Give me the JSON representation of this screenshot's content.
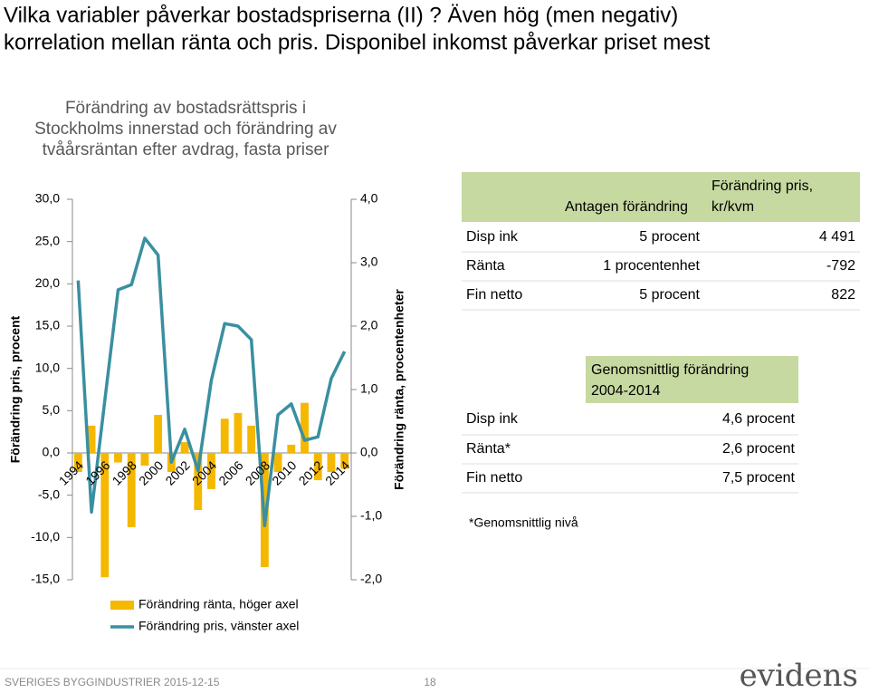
{
  "slide_title": [
    "Vilka variabler påverkar bostadspriserna (II) ? Även hög (men negativ)",
    "korrelation mellan ränta och pris. Disponibel inkomst påverkar priset mest"
  ],
  "chart_data": {
    "type": "bar_line",
    "title": [
      "Förändring av bostadsrättspris i",
      "Stockholms innerstad och förändring av",
      "tvåårsräntan efter avdrag, fasta priser"
    ],
    "y_label": "Förändring pris, procent",
    "y2_label": "Förändring ränta, procentenheter",
    "categories": [
      "1994",
      null,
      "1996",
      null,
      "1998",
      null,
      "2000",
      null,
      "2002",
      null,
      "2004",
      null,
      "2006",
      null,
      "2008",
      null,
      "2010",
      null,
      "2012",
      null,
      "2014"
    ],
    "series": [
      {
        "name": "Förändring ränta, höger axel",
        "color": "#f5b800",
        "kind": "bar",
        "axis": "y2",
        "values": [
          -0.3,
          0.43,
          -1.96,
          -0.15,
          -1.17,
          -0.2,
          0.6,
          -0.3,
          0.17,
          -0.9,
          -0.57,
          0.54,
          0.63,
          0.43,
          -1.8,
          -0.3,
          0.13,
          0.79,
          -0.43,
          -0.3,
          -0.25
        ]
      },
      {
        "name": "Förändring pris, vänster axel",
        "color": "#3a8fa0",
        "kind": "line",
        "values": [
          20.4,
          -7.0,
          6.2,
          19.3,
          19.9,
          25.4,
          23.4,
          -1.1,
          2.8,
          -2.1,
          8.6,
          15.3,
          15.0,
          13.4,
          -8.6,
          4.5,
          5.8,
          1.5,
          1.9,
          8.8,
          12.0
        ]
      }
    ],
    "ylim": [
      -15,
      30
    ],
    "yticks": [
      {
        "value": -15,
        "label": "-15,0"
      },
      {
        "value": -10,
        "label": "-10,0"
      },
      {
        "value": -5,
        "label": "-5,0"
      },
      {
        "value": 0,
        "label": "0,0"
      },
      {
        "value": 5,
        "label": "5,0"
      },
      {
        "value": 10,
        "label": "10,0"
      },
      {
        "value": 15,
        "label": "15,0"
      },
      {
        "value": 20,
        "label": "20,0"
      },
      {
        "value": 25,
        "label": "25,0"
      },
      {
        "value": 30,
        "label": "30,0"
      }
    ],
    "y2lim": [
      -2,
      4
    ],
    "y2ticks": [
      {
        "value": -2,
        "label": "-2,0"
      },
      {
        "value": -1,
        "label": "-1,0"
      },
      {
        "value": 0,
        "label": "0,0"
      },
      {
        "value": 1,
        "label": "1,0"
      },
      {
        "value": 2,
        "label": "2,0"
      },
      {
        "value": 3,
        "label": "3,0"
      },
      {
        "value": 4,
        "label": "4,0"
      }
    ],
    "grid": false
  },
  "table1": {
    "header": {
      "assumed": "Antagen förändring",
      "price": [
        "Förändring pris,",
        "kr/kvm"
      ]
    },
    "rows": [
      [
        "Disp ink",
        "5 procent",
        "4 491"
      ],
      [
        "Ränta",
        "1 procentenhet",
        "-792"
      ],
      [
        "Fin netto",
        "5 procent",
        "822"
      ]
    ]
  },
  "table2": {
    "header": [
      "Genomsnittlig förändring",
      "2004-2014"
    ],
    "rows": [
      [
        "Disp ink",
        "4,6 procent"
      ],
      [
        "Ränta*",
        "2,6 procent"
      ],
      [
        "Fin netto",
        "7,5 procent"
      ]
    ],
    "note": "*Genomsnittlig nivå"
  },
  "footer": {
    "source": "SVERIGES BYGGINDUSTRIER 2015-12-15",
    "page": "18",
    "logo": "evidens"
  }
}
